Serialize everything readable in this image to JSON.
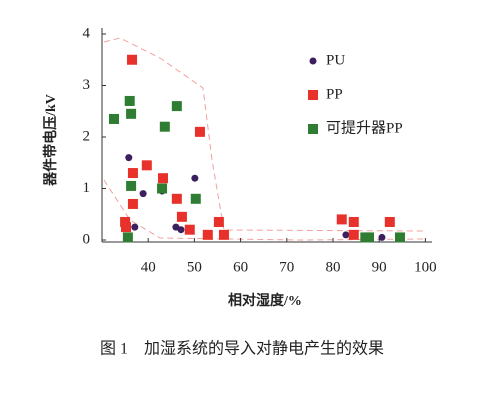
{
  "chart_data": {
    "type": "scatter",
    "caption": "图 1　加湿系统的导入对静电产生的效果",
    "x_label": "相对湿度/%",
    "y_label": "器件带电压/kV",
    "xlim": [
      30,
      101
    ],
    "ylim": [
      0,
      4
    ],
    "xticks": [
      40,
      50,
      60,
      70,
      80,
      90,
      100
    ],
    "yticks": [
      0,
      1,
      2,
      3,
      4
    ],
    "series": [
      {
        "name": "PU",
        "color": "#3b1f5e",
        "marker": "circle",
        "x": [
          35.8,
          37.1,
          38.9,
          43,
          46,
          47.1,
          50.1,
          82.8,
          90.6
        ],
        "values": [
          1.6,
          0.25,
          0.9,
          0.95,
          0.25,
          0.2,
          1.2,
          0.1,
          0.05
        ]
      },
      {
        "name": "PP",
        "color": "#e8312a",
        "marker": "square",
        "x": [
          36.5,
          35,
          35.2,
          36.7,
          36.7,
          39.7,
          43.2,
          46.2,
          47.3,
          49,
          51.2,
          52.9,
          55.3,
          56.4,
          81.9,
          84.5,
          84.5,
          92.3
        ],
        "values": [
          3.5,
          0.35,
          0.25,
          0.7,
          1.3,
          1.45,
          1.2,
          0.8,
          0.45,
          0.2,
          2.1,
          0.1,
          0.35,
          0.1,
          0.4,
          0.35,
          0.1,
          0.35
        ]
      },
      {
        "name": "可提升器PP",
        "color": "#2e7d32",
        "marker": "square",
        "x": [
          32.6,
          36,
          36.3,
          36.3,
          35.6,
          43.6,
          43,
          46.2,
          50.3,
          87,
          87.8,
          94.5
        ],
        "values": [
          2.35,
          2.7,
          2.45,
          1.05,
          0.05,
          2.2,
          1.0,
          2.6,
          0.8,
          0.05,
          0.05,
          0.05
        ]
      }
    ]
  }
}
